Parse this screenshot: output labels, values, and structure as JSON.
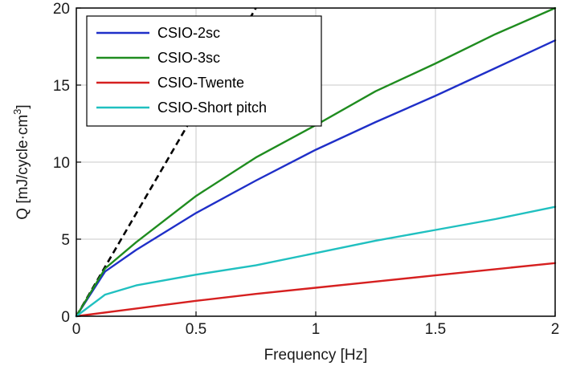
{
  "chart_data": {
    "type": "line",
    "xlabel": "Frequency [Hz]",
    "ylabel": "Q [mJ/cycle·cm",
    "ylabel_sup": "3",
    "ylabel_end": "]",
    "xlim": [
      0,
      2
    ],
    "ylim": [
      0,
      20
    ],
    "xticks": [
      0,
      0.5,
      1,
      1.5,
      2
    ],
    "xtick_labels": [
      "0",
      "0.5",
      "1",
      "1.5",
      "2"
    ],
    "yticks": [
      0,
      5,
      10,
      15,
      20
    ],
    "ytick_labels": [
      "0",
      "5",
      "10",
      "15",
      "20"
    ],
    "grid": true,
    "legend_position": "top-left",
    "series": [
      {
        "name": "CSIO-2sc",
        "color": "#1f2fc8",
        "x": [
          0,
          0.12,
          0.25,
          0.5,
          0.75,
          1.0,
          1.25,
          1.5,
          1.75,
          2.0
        ],
        "y": [
          0,
          2.9,
          4.3,
          6.7,
          8.8,
          10.8,
          12.6,
          14.3,
          16.1,
          17.9
        ]
      },
      {
        "name": "CSIO-3sc",
        "color": "#1f8c1f",
        "x": [
          0,
          0.12,
          0.25,
          0.5,
          0.75,
          1.0,
          1.25,
          1.5,
          1.75,
          2.0
        ],
        "y": [
          0,
          3.1,
          4.8,
          7.8,
          10.3,
          12.4,
          14.6,
          16.4,
          18.3,
          20.0
        ]
      },
      {
        "name": "CSIO-Twente",
        "color": "#d62020",
        "x": [
          0,
          0.25,
          0.5,
          0.75,
          1.0,
          1.25,
          1.5,
          1.75,
          2.0
        ],
        "y": [
          0,
          0.5,
          1.0,
          1.45,
          1.85,
          2.25,
          2.65,
          3.05,
          3.45
        ]
      },
      {
        "name": "CSIO-Short pitch",
        "color": "#20c0c0",
        "x": [
          0,
          0.12,
          0.25,
          0.5,
          0.75,
          1.0,
          1.25,
          1.5,
          1.75,
          2.0
        ],
        "y": [
          0,
          1.4,
          2.0,
          2.7,
          3.3,
          4.1,
          4.9,
          5.6,
          6.3,
          7.1
        ]
      }
    ],
    "reference_line": {
      "style": "dashed",
      "color": "#000000",
      "x": [
        0,
        0.75
      ],
      "y": [
        0,
        20
      ]
    }
  }
}
